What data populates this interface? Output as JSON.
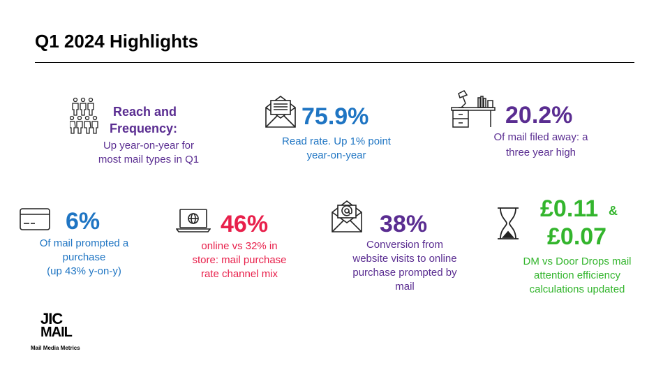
{
  "title": "Q1 2024 Highlights",
  "colors": {
    "purple": "#5a2d91",
    "blue": "#1f75c3",
    "pink": "#e8204b",
    "green": "#33b52d",
    "icon": "#222222"
  },
  "stats": {
    "reach": {
      "icon": "people-group-icon",
      "heading_line1": "Reach and",
      "heading_line2": "Frequency:",
      "text_line1": "Up year-on-year for",
      "text_line2": "most mail types in Q1"
    },
    "read_rate": {
      "icon": "open-envelope-icon",
      "value": "75.9%",
      "text_line1": "Read rate. Up 1% point",
      "text_line2": "year-on-year"
    },
    "filed_away": {
      "icon": "desk-icon",
      "value": "20.2%",
      "text_line1": "Of mail filed away: a",
      "text_line2": "three year high"
    },
    "prompted_purchase": {
      "icon": "credit-card-icon",
      "value": "6%",
      "text_line1": "Of mail prompted a",
      "text_line2": "purchase",
      "text_line3": "(up 43% y-on-y)"
    },
    "online": {
      "icon": "laptop-globe-icon",
      "value": "46%",
      "text_line1": "online vs 32% in",
      "text_line2": "store: mail purchase",
      "text_line3": "rate channel mix"
    },
    "conversion": {
      "icon": "email-at-icon",
      "value": "38%",
      "text_line1": "Conversion from",
      "text_line2": "website visits to online",
      "text_line3": "purchase prompted by",
      "text_line4": "mail"
    },
    "efficiency": {
      "icon": "hourglass-icon",
      "value1": "£0.11",
      "amp": "&",
      "value2": "£0.07",
      "text_line1": "DM vs Door Drops mail",
      "text_line2": "attention efficiency",
      "text_line3": "calculations updated"
    }
  },
  "logo": {
    "line1": "JIC",
    "line2": "MAIL",
    "tagline": "Mail Media Metrics"
  }
}
